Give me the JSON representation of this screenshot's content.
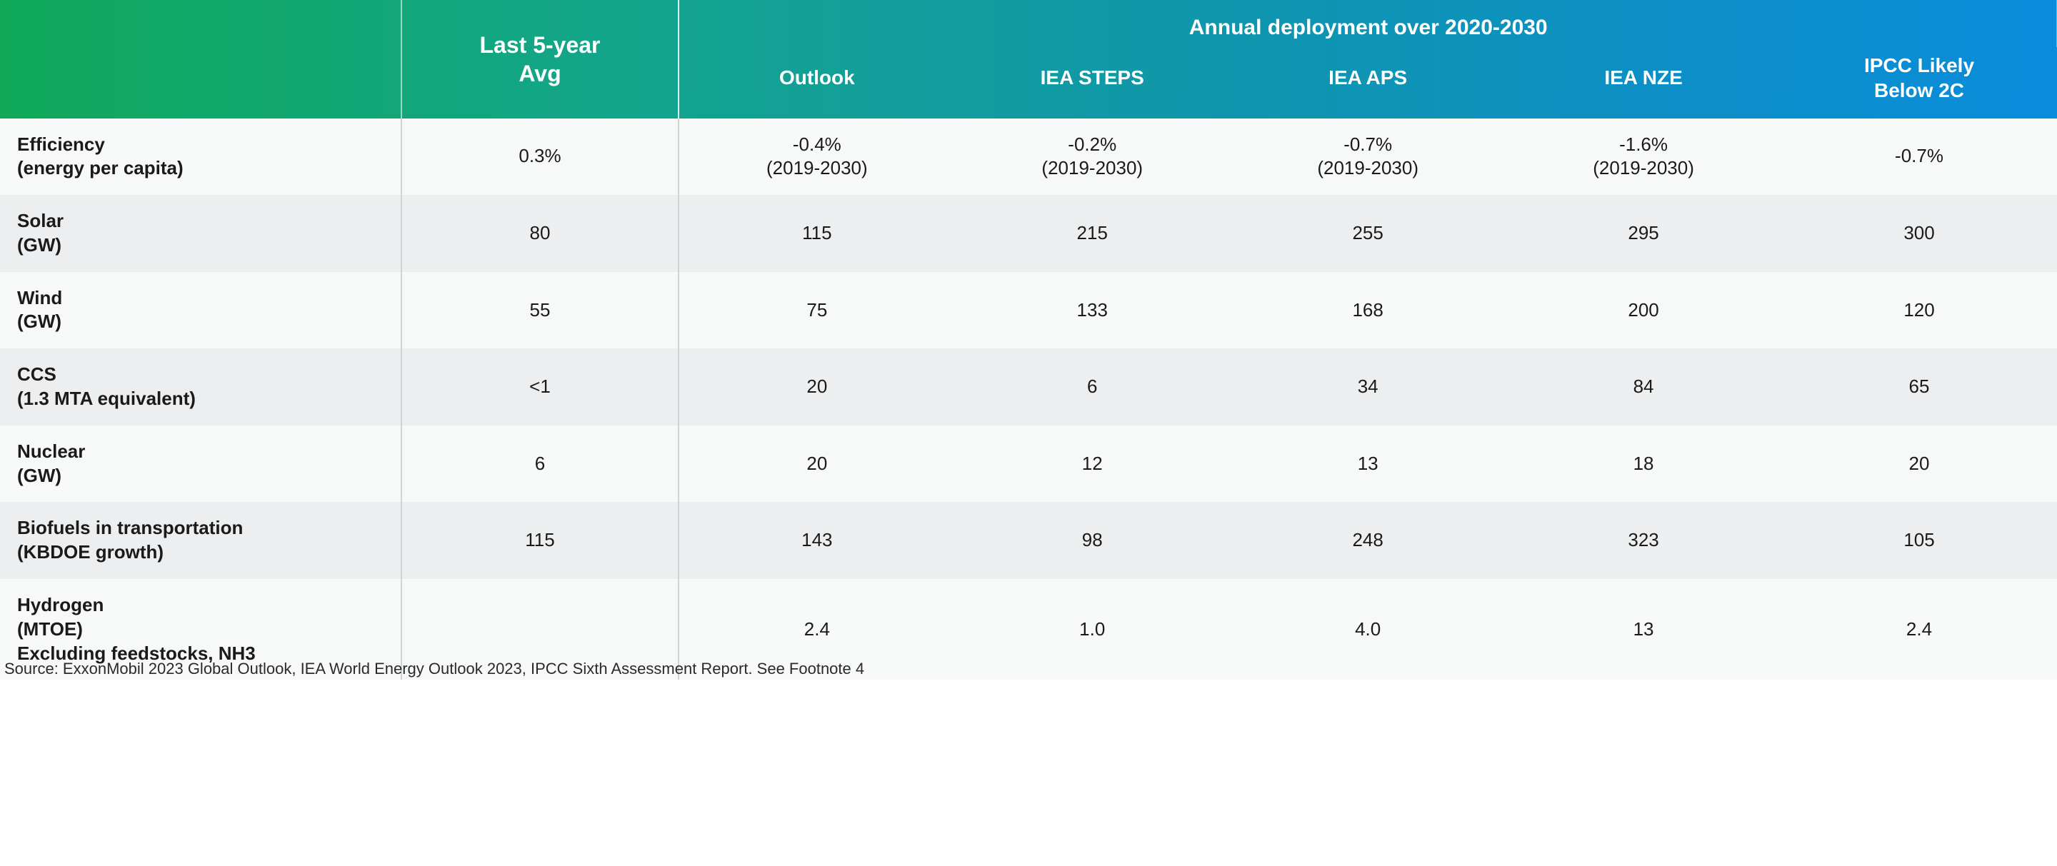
{
  "table": {
    "type": "table",
    "background_color": "#ffffff",
    "row_stripe_colors": [
      "#f7f9f9",
      "#eceeef"
    ],
    "header_gradient": [
      "#0fa958",
      "#13a58b",
      "#1098a8",
      "#0c8fc4",
      "#0a8cdc"
    ],
    "header_text_color": "#ffffff",
    "body_text_color": "#1a1a1a",
    "header_fontsize": 28,
    "body_fontsize": 26,
    "column_separator_color": "#d0d4d4",
    "columns": {
      "row_label_width_pct": 19.5,
      "avg_width_pct": 13.5,
      "data_width_pct": 13.4,
      "avg_header": "Last 5-year\nAvg",
      "super_header": "Annual deployment over 2020-2030",
      "scenario_headers": [
        "Outlook",
        "IEA STEPS",
        "IEA APS",
        "IEA NZE",
        "IPCC Likely\nBelow 2C"
      ]
    },
    "rows": [
      {
        "label": "Efficiency",
        "sublabel": "(energy per capita)",
        "avg": "0.3%",
        "cells": [
          {
            "v": "-0.4%",
            "note": "(2019-2030)"
          },
          {
            "v": "-0.2%",
            "note": "(2019-2030)"
          },
          {
            "v": "-0.7%",
            "note": "(2019-2030)"
          },
          {
            "v": "-1.6%",
            "note": "(2019-2030)"
          },
          {
            "v": "-0.7%"
          }
        ]
      },
      {
        "label": "Solar",
        "sublabel": "(GW)",
        "avg": "80",
        "cells": [
          {
            "v": "115"
          },
          {
            "v": "215"
          },
          {
            "v": "255"
          },
          {
            "v": "295"
          },
          {
            "v": "300"
          }
        ]
      },
      {
        "label": "Wind",
        "sublabel": "(GW)",
        "avg": "55",
        "cells": [
          {
            "v": "75"
          },
          {
            "v": "133"
          },
          {
            "v": "168"
          },
          {
            "v": "200"
          },
          {
            "v": "120"
          }
        ]
      },
      {
        "label": "CCS",
        "sublabel": "(1.3 MTA equivalent)",
        "avg": "<1",
        "cells": [
          {
            "v": "20"
          },
          {
            "v": "6"
          },
          {
            "v": "34"
          },
          {
            "v": "84"
          },
          {
            "v": "65"
          }
        ]
      },
      {
        "label": "Nuclear",
        "sublabel": "(GW)",
        "avg": "6",
        "cells": [
          {
            "v": "20"
          },
          {
            "v": "12"
          },
          {
            "v": "13"
          },
          {
            "v": "18"
          },
          {
            "v": "20"
          }
        ]
      },
      {
        "label": "Biofuels in transportation",
        "sublabel": "(KBDOE growth)",
        "avg": "115",
        "cells": [
          {
            "v": "143"
          },
          {
            "v": "98"
          },
          {
            "v": "248"
          },
          {
            "v": "323"
          },
          {
            "v": "105"
          }
        ]
      },
      {
        "label": "Hydrogen",
        "sublabel": "(MTOE)",
        "sublabel2": "Excluding feedstocks, NH3",
        "avg": "",
        "cells": [
          {
            "v": "2.4"
          },
          {
            "v": "1.0"
          },
          {
            "v": "4.0"
          },
          {
            "v": "13"
          },
          {
            "v": "2.4"
          }
        ]
      }
    ],
    "source_note": "Source: ExxonMobil 2023 Global Outlook, IEA World Energy Outlook 2023, IPCC Sixth Assessment Report. See Footnote 4"
  }
}
